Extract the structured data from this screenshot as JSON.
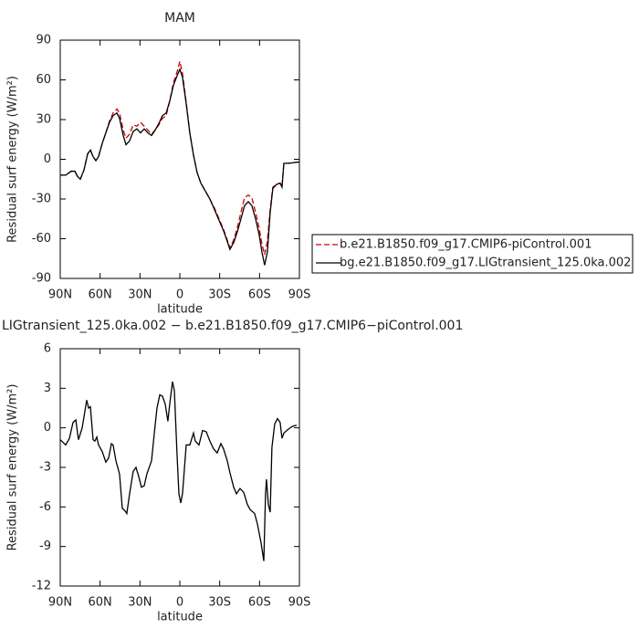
{
  "chart_data": [
    {
      "type": "line",
      "title": "MAM",
      "xlabel": "latitude",
      "ylabel": "Residual surf energy (W/m²)",
      "x": [
        90,
        85.9,
        81.8,
        79,
        77,
        74.9,
        72.1,
        69.4,
        67.3,
        65.3,
        63.2,
        61.2,
        58.4,
        55.7,
        52.9,
        50.2,
        47.4,
        45.4,
        42.6,
        40.5,
        37.8,
        35.1,
        32.3,
        29.6,
        26.8,
        24.1,
        21.3,
        18.6,
        15.8,
        13.1,
        10.3,
        7.6,
        4.8,
        2.1,
        0,
        -2,
        -4.8,
        -7.5,
        -10.3,
        -13,
        -15.8,
        -19.2,
        -22.6,
        -26.1,
        -29.5,
        -32.9,
        -35.7,
        -37.7,
        -40.5,
        -43.2,
        -46,
        -48.7,
        -51.5,
        -54.2,
        -57,
        -59.7,
        -61.8,
        -63.8,
        -65.9,
        -68,
        -70,
        -72.8,
        -75.5,
        -76.9,
        -78.3,
        -81.7,
        -85.8,
        -90
      ],
      "series": [
        {
          "name": "b.e21.B1850.f09_g17.CMIP6-piControl.001",
          "color": "#cc0000",
          "dash": "dashed",
          "values": [
            -12,
            -12,
            -9,
            -9,
            -13,
            -15,
            -8,
            4,
            7,
            2,
            -1,
            2,
            12,
            20,
            29,
            35,
            38,
            35,
            22,
            16,
            19,
            26,
            25,
            28,
            25,
            22,
            19,
            22,
            26,
            31,
            33,
            44,
            58,
            66,
            74,
            65,
            43,
            20,
            3,
            -10,
            -18,
            -24,
            -30,
            -37,
            -45,
            -53,
            -61,
            -67,
            -61,
            -52,
            -40,
            -29,
            -27,
            -29,
            -40,
            -52,
            -64,
            -72,
            -62,
            -38,
            -21,
            -19,
            -18,
            -21,
            -3,
            -3,
            -2.5,
            -2
          ]
        },
        {
          "name": "bg.e21.B1850.f09_g17.LIGtransient_125.0ka.002",
          "color": "#000000",
          "dash": "solid",
          "values": [
            -12,
            -12,
            -9,
            -9,
            -13,
            -15,
            -8,
            4,
            7,
            2,
            -1,
            2,
            12,
            20,
            28,
            33,
            35,
            31,
            18,
            11,
            14,
            21,
            23,
            20,
            23,
            20,
            18,
            22,
            27,
            33,
            35,
            44,
            56,
            63,
            68,
            62,
            42,
            20,
            3,
            -10,
            -18,
            -24,
            -30,
            -38,
            -46,
            -54,
            -62,
            -68,
            -63,
            -55,
            -45,
            -35,
            -32,
            -35,
            -45,
            -57,
            -70,
            -80,
            -70,
            -40,
            -22,
            -19,
            -18,
            -21,
            -3,
            -3,
            -2.5,
            -2
          ]
        }
      ],
      "xlim": [
        90,
        -90
      ],
      "xticks": [
        {
          "value": 90,
          "label": "90N"
        },
        {
          "value": 60,
          "label": "60N"
        },
        {
          "value": 30,
          "label": "30N"
        },
        0,
        {
          "value": -30,
          "label": "30S"
        },
        {
          "value": -60,
          "label": "60S"
        },
        {
          "value": -90,
          "label": "90S"
        }
      ],
      "ylim": [
        -90,
        90
      ],
      "yticks": [
        -90,
        -60,
        -30,
        0,
        30,
        60,
        90
      ]
    },
    {
      "type": "line",
      "title": "LIGtransient_125.0ka.002 − b.e21.B1850.f09_g17.CMIP6−piControl.001",
      "xlabel": "latitude",
      "ylabel": "Residual surf energy (W/m²)",
      "x": [
        90,
        85.9,
        83.1,
        80.4,
        78.3,
        76.3,
        73.5,
        70.1,
        68.7,
        67.3,
        65.3,
        63.9,
        62.5,
        61.2,
        58.4,
        55.7,
        53.6,
        51.5,
        50.2,
        48.1,
        45.4,
        43.3,
        41.2,
        39.9,
        37.8,
        35.1,
        33,
        30.9,
        28.9,
        26.8,
        24.8,
        21.3,
        19.3,
        17.2,
        15.1,
        13.1,
        11,
        9,
        7.6,
        5.5,
        4.1,
        2.1,
        0.7,
        -0.7,
        -2,
        -4.8,
        -7.5,
        -10.3,
        -11.6,
        -14.4,
        -17.1,
        -19.9,
        -22.6,
        -25.4,
        -28.1,
        -30.9,
        -32.9,
        -35.7,
        -37.7,
        -40.5,
        -42.6,
        -45.3,
        -48.1,
        -50.8,
        -52.9,
        -56.3,
        -58.4,
        -61.1,
        -63.2,
        -64.5,
        -65.2,
        -66.6,
        -68,
        -69.3,
        -71.4,
        -73.5,
        -75.5,
        -76.9,
        -78.3,
        -81.7,
        -84.5,
        -87.9
      ],
      "series": [
        {
          "name": null,
          "color": "#000000",
          "dash": "solid",
          "values": [
            -0.9,
            -1.3,
            -0.8,
            0.4,
            0.6,
            -0.9,
            0,
            2.1,
            1.5,
            1.6,
            -0.9,
            -1,
            -0.7,
            -1.3,
            -1.8,
            -2.6,
            -2.3,
            -1.2,
            -1.3,
            -2.5,
            -3.5,
            -6.1,
            -6.3,
            -6.5,
            -5,
            -3.3,
            -3,
            -3.7,
            -4.5,
            -4.4,
            -3.5,
            -2.5,
            -0.5,
            1.5,
            2.5,
            2.4,
            1.8,
            0.5,
            1.8,
            3.5,
            2.8,
            -2,
            -5,
            -5.7,
            -5,
            -1.3,
            -1.3,
            -0.4,
            -1,
            -1.3,
            -0.2,
            -0.3,
            -1,
            -1.6,
            -1.9,
            -1.2,
            -1.6,
            -2.5,
            -3.4,
            -4.5,
            -5,
            -4.6,
            -4.9,
            -5.8,
            -6.2,
            -6.5,
            -7.3,
            -8.7,
            -10.1,
            -5,
            -3.9,
            -5.8,
            -6.4,
            -1.5,
            0.3,
            0.7,
            0.4,
            -0.8,
            -0.4,
            -0.1,
            0.1,
            0.2
          ]
        }
      ],
      "xlim": [
        90,
        -90
      ],
      "xticks": [
        {
          "value": 90,
          "label": "90N"
        },
        {
          "value": 60,
          "label": "60N"
        },
        {
          "value": 30,
          "label": "30N"
        },
        0,
        {
          "value": -30,
          "label": "30S"
        },
        {
          "value": -60,
          "label": "60S"
        },
        {
          "value": -90,
          "label": "90S"
        }
      ],
      "ylim": [
        -12,
        6
      ],
      "yticks": [
        -12,
        -9,
        -6,
        -3,
        0,
        3,
        6
      ]
    }
  ]
}
